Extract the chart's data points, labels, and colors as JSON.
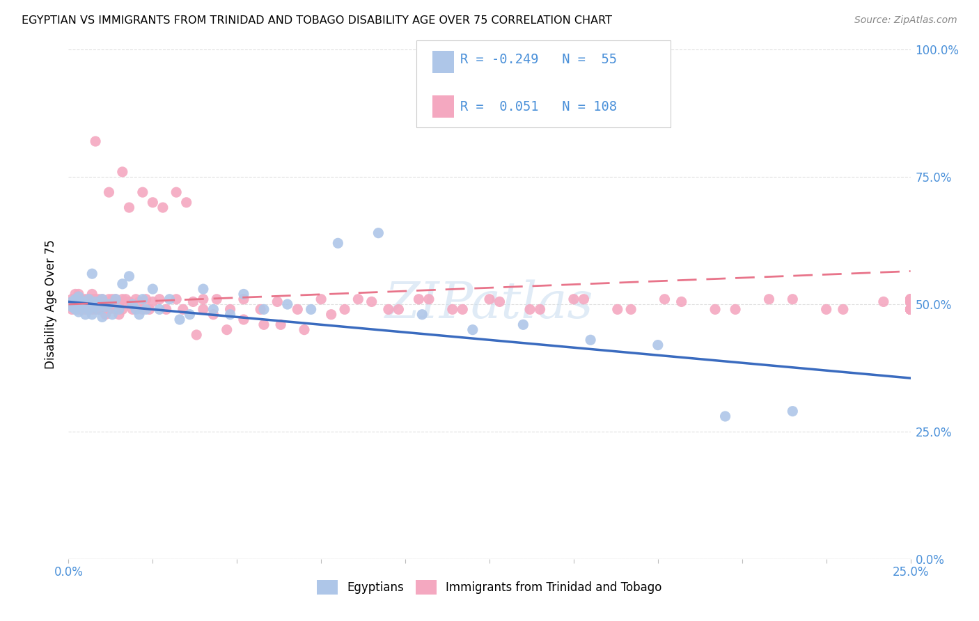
{
  "title": "EGYPTIAN VS IMMIGRANTS FROM TRINIDAD AND TOBAGO DISABILITY AGE OVER 75 CORRELATION CHART",
  "source": "Source: ZipAtlas.com",
  "ylabel": "Disability Age Over 75",
  "legend_label1": "Egyptians",
  "legend_label2": "Immigrants from Trinidad and Tobago",
  "r1": -0.249,
  "n1": 55,
  "r2": 0.051,
  "n2": 108,
  "color_blue": "#aec6e8",
  "color_pink": "#f4a8c0",
  "color_blue_line": "#3a6bbf",
  "color_pink_line": "#e8748a",
  "color_blue_text": "#4a90d9",
  "color_pink_text": "#e8748a",
  "color_grid": "#d8d8d8",
  "watermark": "ZIPatlas",
  "xlim": [
    0.0,
    0.25
  ],
  "ylim": [
    0.0,
    1.0
  ],
  "blue_x": [
    0.001,
    0.001,
    0.002,
    0.002,
    0.003,
    0.003,
    0.003,
    0.004,
    0.004,
    0.005,
    0.005,
    0.006,
    0.006,
    0.007,
    0.007,
    0.007,
    0.008,
    0.008,
    0.009,
    0.009,
    0.01,
    0.01,
    0.011,
    0.012,
    0.013,
    0.014,
    0.015,
    0.016,
    0.018,
    0.019,
    0.02,
    0.021,
    0.022,
    0.023,
    0.025,
    0.027,
    0.03,
    0.033,
    0.036,
    0.04,
    0.043,
    0.048,
    0.052,
    0.058,
    0.065,
    0.072,
    0.08,
    0.092,
    0.105,
    0.12,
    0.135,
    0.155,
    0.175,
    0.195,
    0.215
  ],
  "blue_y": [
    0.505,
    0.495,
    0.51,
    0.49,
    0.5,
    0.515,
    0.485,
    0.505,
    0.495,
    0.5,
    0.48,
    0.51,
    0.49,
    0.56,
    0.5,
    0.48,
    0.505,
    0.495,
    0.5,
    0.49,
    0.475,
    0.51,
    0.495,
    0.5,
    0.48,
    0.51,
    0.49,
    0.54,
    0.555,
    0.5,
    0.49,
    0.48,
    0.51,
    0.49,
    0.53,
    0.49,
    0.51,
    0.47,
    0.48,
    0.53,
    0.49,
    0.48,
    0.52,
    0.49,
    0.5,
    0.49,
    0.62,
    0.64,
    0.48,
    0.45,
    0.46,
    0.43,
    0.42,
    0.28,
    0.29
  ],
  "pink_x": [
    0.001,
    0.001,
    0.001,
    0.001,
    0.002,
    0.002,
    0.002,
    0.002,
    0.002,
    0.003,
    0.003,
    0.003,
    0.003,
    0.003,
    0.004,
    0.004,
    0.004,
    0.004,
    0.005,
    0.005,
    0.005,
    0.005,
    0.006,
    0.006,
    0.006,
    0.006,
    0.007,
    0.007,
    0.007,
    0.007,
    0.008,
    0.008,
    0.008,
    0.009,
    0.009,
    0.009,
    0.01,
    0.01,
    0.01,
    0.011,
    0.011,
    0.012,
    0.012,
    0.013,
    0.013,
    0.014,
    0.014,
    0.015,
    0.015,
    0.016,
    0.016,
    0.017,
    0.018,
    0.019,
    0.02,
    0.021,
    0.022,
    0.023,
    0.024,
    0.025,
    0.027,
    0.029,
    0.032,
    0.034,
    0.037,
    0.04,
    0.044,
    0.048,
    0.052,
    0.057,
    0.062,
    0.068,
    0.075,
    0.082,
    0.09,
    0.098,
    0.107,
    0.117,
    0.128,
    0.14,
    0.153,
    0.167,
    0.182,
    0.198,
    0.215,
    0.23,
    0.242,
    0.25,
    0.25,
    0.25,
    0.25,
    0.25,
    0.25,
    0.25,
    0.25,
    0.25,
    0.25,
    0.25,
    0.25,
    0.25,
    0.25,
    0.25,
    0.25,
    0.25,
    0.25,
    0.25,
    0.25,
    0.25
  ],
  "pink_y": [
    0.505,
    0.49,
    0.51,
    0.495,
    0.505,
    0.495,
    0.51,
    0.49,
    0.52,
    0.5,
    0.49,
    0.51,
    0.495,
    0.52,
    0.505,
    0.49,
    0.51,
    0.495,
    0.5,
    0.49,
    0.51,
    0.495,
    0.505,
    0.49,
    0.51,
    0.495,
    0.5,
    0.49,
    0.51,
    0.52,
    0.505,
    0.49,
    0.51,
    0.5,
    0.49,
    0.51,
    0.505,
    0.49,
    0.51,
    0.5,
    0.48,
    0.51,
    0.49,
    0.505,
    0.51,
    0.49,
    0.51,
    0.5,
    0.48,
    0.51,
    0.49,
    0.51,
    0.505,
    0.49,
    0.51,
    0.505,
    0.49,
    0.51,
    0.49,
    0.505,
    0.51,
    0.49,
    0.51,
    0.49,
    0.505,
    0.49,
    0.51,
    0.49,
    0.51,
    0.49,
    0.505,
    0.49,
    0.51,
    0.49,
    0.505,
    0.49,
    0.51,
    0.49,
    0.505,
    0.49,
    0.51,
    0.49,
    0.505,
    0.49,
    0.51,
    0.49,
    0.505,
    0.49,
    0.51,
    0.49,
    0.505,
    0.49,
    0.51,
    0.49,
    0.505,
    0.49,
    0.51,
    0.49,
    0.505,
    0.49,
    0.51,
    0.49,
    0.505,
    0.49,
    0.51,
    0.49,
    0.505,
    0.49
  ],
  "pink_extra_x": [
    0.008,
    0.012,
    0.016,
    0.018,
    0.022,
    0.025,
    0.028,
    0.032,
    0.035,
    0.038,
    0.04,
    0.043,
    0.047,
    0.052,
    0.058,
    0.063,
    0.07,
    0.078,
    0.086,
    0.095,
    0.104,
    0.114,
    0.125,
    0.137,
    0.15,
    0.163,
    0.177,
    0.192,
    0.208,
    0.225
  ],
  "pink_extra_y": [
    0.82,
    0.72,
    0.76,
    0.69,
    0.72,
    0.7,
    0.69,
    0.72,
    0.7,
    0.44,
    0.51,
    0.48,
    0.45,
    0.47,
    0.46,
    0.46,
    0.45,
    0.48,
    0.51,
    0.49,
    0.51,
    0.49,
    0.51,
    0.49,
    0.51,
    0.49,
    0.51,
    0.49,
    0.51,
    0.49
  ]
}
